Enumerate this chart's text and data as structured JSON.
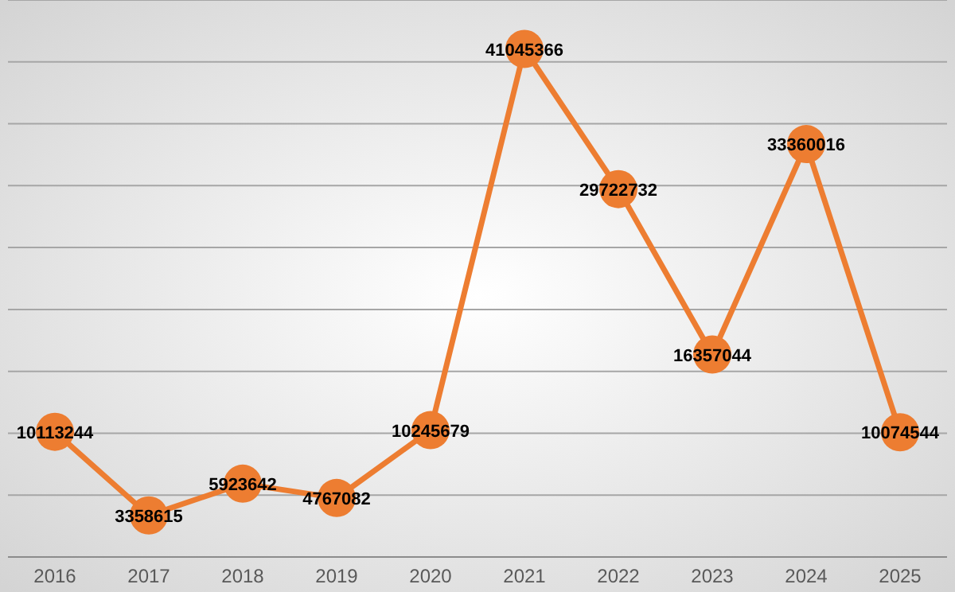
{
  "chart_data": {
    "type": "line",
    "categories": [
      "2016",
      "2017",
      "2018",
      "2019",
      "2020",
      "2021",
      "2022",
      "2023",
      "2024",
      "2025"
    ],
    "series": [
      {
        "color": "#ed7d31",
        "values": [
          10113244,
          3358615,
          5923642,
          4767082,
          10245679,
          41045366,
          29722732,
          16357044,
          33360016,
          10074544
        ]
      }
    ],
    "ylim": [
      0,
      45000000
    ],
    "yticks": [
      {
        "value": 0,
        "label": null
      },
      {
        "value": 5000000,
        "label": null
      },
      {
        "value": 10000000,
        "label": null
      },
      {
        "value": 15000000,
        "label": null
      },
      {
        "value": 20000000,
        "label": null
      },
      {
        "value": 25000000,
        "label": null
      },
      {
        "value": 30000000,
        "label": null
      },
      {
        "value": 35000000,
        "label": null
      },
      {
        "value": 40000000,
        "label": null
      },
      {
        "value": 45000000,
        "label": null
      }
    ],
    "tick_labels": "x",
    "grid": "y",
    "marker": "circle",
    "line_style": "solid",
    "data_labels": true
  }
}
